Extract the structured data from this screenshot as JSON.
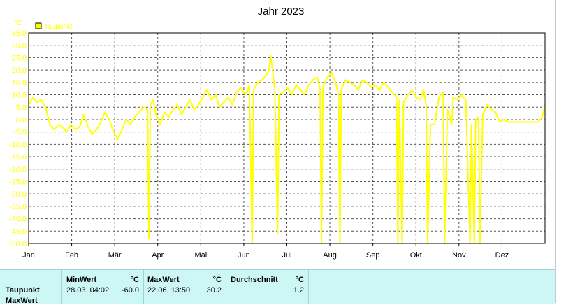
{
  "chart_data": {
    "type": "line",
    "title": "Jahr 2023",
    "unit": "°C",
    "legend": [
      "Taupunkt"
    ],
    "legend_placement": "top-left",
    "grid": true,
    "ylim": [
      -50,
      35
    ],
    "yticks": [
      "35.0",
      "30.0",
      "25.0",
      "20.0",
      "15.0",
      "10.0",
      "5.0",
      "0.0",
      "-5.0",
      "-10.0",
      "-15.0",
      "-20.0",
      "-25.0",
      "-30.0",
      "-35.0",
      "-40.0",
      "-45.0",
      "-50.0"
    ],
    "xticks": [
      "Jan",
      "Feb",
      "Mär",
      "Apr",
      "Mai",
      "Jun",
      "Jul",
      "Aug",
      "Sep",
      "Okt",
      "Nov",
      "Dez"
    ],
    "xlim_days": [
      0,
      365
    ],
    "series": [
      {
        "name": "Taupunkt",
        "color": "#ffff00",
        "points": [
          [
            0,
            6
          ],
          [
            3,
            9
          ],
          [
            6,
            7
          ],
          [
            9,
            8
          ],
          [
            12,
            5
          ],
          [
            15,
            -2
          ],
          [
            18,
            -4
          ],
          [
            21,
            -2
          ],
          [
            24,
            -3
          ],
          [
            27,
            -5
          ],
          [
            30,
            -2
          ],
          [
            33,
            -4
          ],
          [
            36,
            -3
          ],
          [
            39,
            2
          ],
          [
            42,
            -3
          ],
          [
            45,
            -6
          ],
          [
            48,
            -4
          ],
          [
            51,
            -1
          ],
          [
            54,
            3
          ],
          [
            57,
            0
          ],
          [
            60,
            -5
          ],
          [
            63,
            -8
          ],
          [
            66,
            -4
          ],
          [
            69,
            0
          ],
          [
            72,
            -2
          ],
          [
            75,
            1
          ],
          [
            78,
            3
          ],
          [
            81,
            5
          ],
          [
            84,
            4
          ],
          [
            85,
            -48
          ],
          [
            86,
            6
          ],
          [
            88,
            8
          ],
          [
            90,
            2
          ],
          [
            93,
            -2
          ],
          [
            96,
            3
          ],
          [
            99,
            1
          ],
          [
            102,
            4
          ],
          [
            105,
            6
          ],
          [
            108,
            2
          ],
          [
            111,
            5
          ],
          [
            114,
            8
          ],
          [
            117,
            4
          ],
          [
            120,
            6
          ],
          [
            123,
            9
          ],
          [
            126,
            12
          ],
          [
            129,
            8
          ],
          [
            132,
            10
          ],
          [
            135,
            5
          ],
          [
            138,
            7
          ],
          [
            141,
            9
          ],
          [
            144,
            6
          ],
          [
            147,
            11
          ],
          [
            150,
            13
          ],
          [
            153,
            10
          ],
          [
            155,
            12
          ],
          [
            156,
            14
          ],
          [
            158,
            -50
          ],
          [
            159,
            12
          ],
          [
            162,
            15
          ],
          [
            165,
            16
          ],
          [
            168,
            18
          ],
          [
            170,
            20
          ],
          [
            171,
            26
          ],
          [
            172,
            22
          ],
          [
            174,
            12
          ],
          [
            176,
            -46
          ],
          [
            177,
            10
          ],
          [
            180,
            11
          ],
          [
            183,
            13
          ],
          [
            186,
            10
          ],
          [
            189,
            14
          ],
          [
            192,
            12
          ],
          [
            195,
            10
          ],
          [
            198,
            14
          ],
          [
            201,
            16
          ],
          [
            204,
            17
          ],
          [
            206,
            12
          ],
          [
            207,
            -50
          ],
          [
            208,
            13
          ],
          [
            211,
            17
          ],
          [
            214,
            19
          ],
          [
            217,
            15
          ],
          [
            219,
            10
          ],
          [
            220,
            -50
          ],
          [
            221,
            12
          ],
          [
            224,
            16
          ],
          [
            227,
            15
          ],
          [
            230,
            14
          ],
          [
            233,
            12
          ],
          [
            236,
            16
          ],
          [
            239,
            15
          ],
          [
            242,
            13
          ],
          [
            245,
            14
          ],
          [
            248,
            12
          ],
          [
            251,
            15
          ],
          [
            254,
            13
          ],
          [
            257,
            11
          ],
          [
            260,
            9
          ],
          [
            261,
            -50
          ],
          [
            262,
            8
          ],
          [
            264,
            -50
          ],
          [
            265,
            7
          ],
          [
            268,
            10
          ],
          [
            271,
            12
          ],
          [
            274,
            9
          ],
          [
            277,
            8
          ],
          [
            279,
            12
          ],
          [
            281,
            6
          ],
          [
            282,
            -50
          ],
          [
            284,
            -2
          ],
          [
            287,
            -2
          ],
          [
            290,
            9
          ],
          [
            293,
            11
          ],
          [
            294,
            -50
          ],
          [
            296,
            4
          ],
          [
            299,
            -2
          ],
          [
            300,
            9
          ],
          [
            303,
            8
          ],
          [
            306,
            10
          ],
          [
            309,
            8
          ],
          [
            312,
            -50
          ],
          [
            313,
            -2
          ],
          [
            315,
            -50
          ],
          [
            316,
            0
          ],
          [
            318,
            1
          ],
          [
            319,
            -50
          ],
          [
            321,
            2
          ],
          [
            324,
            6
          ],
          [
            327,
            4
          ],
          [
            330,
            3
          ],
          [
            333,
            -1
          ],
          [
            336,
            0
          ],
          [
            339,
            -1
          ],
          [
            342,
            -1
          ],
          [
            345,
            -1
          ],
          [
            348,
            -1
          ],
          [
            351,
            -1
          ],
          [
            354,
            -1
          ],
          [
            357,
            -1
          ],
          [
            360,
            -1
          ],
          [
            363,
            1
          ],
          [
            365,
            6
          ]
        ]
      }
    ]
  },
  "stats": {
    "min_header": "MinWert",
    "max_header": "MaxWert",
    "avg_header": "Durchschnitt",
    "unit": "°C",
    "row_label": "Taupunkt",
    "row_label_2": "MaxWert",
    "min_time": "28.03.  04:02",
    "min_value": "-60.0",
    "max_time": "22.06.  13:50",
    "max_value": "30.2",
    "avg_value": "1.2"
  }
}
